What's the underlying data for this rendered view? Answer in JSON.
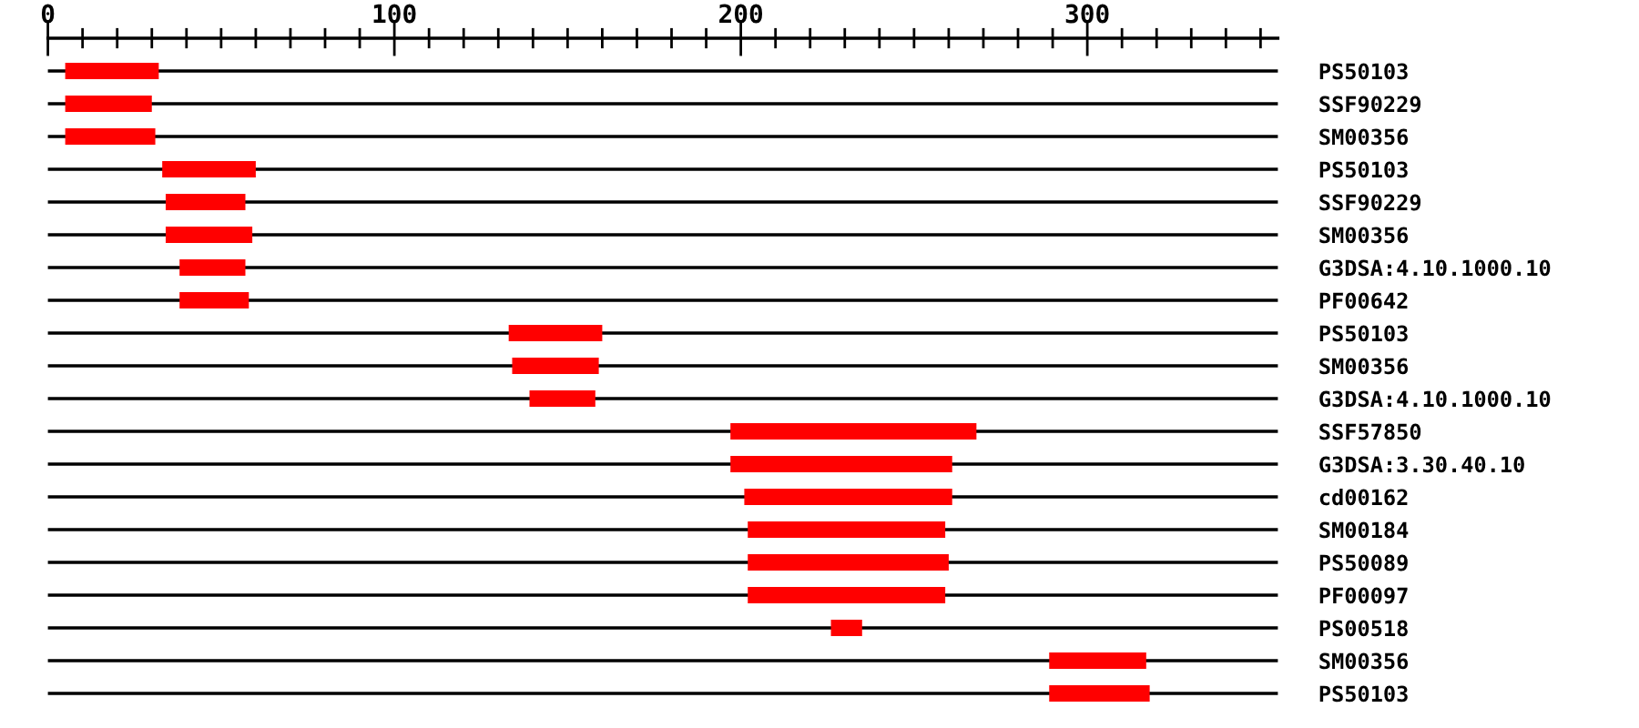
{
  "chart_data": {
    "type": "bar",
    "orientation": "horizontal",
    "categories": [
      "PS50103",
      "SSF90229",
      "SM00356",
      "PS50103",
      "SSF90229",
      "SM00356",
      "G3DSA:4.10.1000.10",
      "PF00642",
      "PS50103",
      "SM00356",
      "G3DSA:4.10.1000.10",
      "SSF57850",
      "G3DSA:3.30.40.10",
      "cd00162",
      "SM00184",
      "PS50089",
      "PF00097",
      "PS00518",
      "SM00356",
      "PS50103"
    ],
    "base": [
      5,
      5,
      5,
      33,
      34,
      34,
      38,
      38,
      133,
      134,
      139,
      197,
      197,
      201,
      202,
      202,
      202,
      226,
      289,
      289
    ],
    "values": [
      27,
      25,
      26,
      27,
      23,
      25,
      19,
      20,
      27,
      25,
      19,
      71,
      64,
      60,
      57,
      58,
      57,
      9,
      28,
      29
    ],
    "color": "#ff0000",
    "xlim": [
      0,
      355
    ],
    "xticks": [
      0,
      {
        "value": 10,
        "label": null
      },
      {
        "value": 20,
        "label": null
      },
      {
        "value": 30,
        "label": null
      },
      {
        "value": 40,
        "label": null
      },
      {
        "value": 50,
        "label": null
      },
      {
        "value": 60,
        "label": null
      },
      {
        "value": 70,
        "label": null
      },
      {
        "value": 80,
        "label": null
      },
      {
        "value": 90,
        "label": null
      },
      100,
      {
        "value": 110,
        "label": null
      },
      {
        "value": 120,
        "label": null
      },
      {
        "value": 130,
        "label": null
      },
      {
        "value": 140,
        "label": null
      },
      {
        "value": 150,
        "label": null
      },
      {
        "value": 160,
        "label": null
      },
      {
        "value": 170,
        "label": null
      },
      {
        "value": 180,
        "label": null
      },
      {
        "value": 190,
        "label": null
      },
      200,
      {
        "value": 210,
        "label": null
      },
      {
        "value": 220,
        "label": null
      },
      {
        "value": 230,
        "label": null
      },
      {
        "value": 240,
        "label": null
      },
      {
        "value": 250,
        "label": null
      },
      {
        "value": 260,
        "label": null
      },
      {
        "value": 270,
        "label": null
      },
      {
        "value": 280,
        "label": null
      },
      {
        "value": 290,
        "label": null
      },
      300,
      {
        "value": 310,
        "label": null
      },
      {
        "value": 320,
        "label": null
      },
      {
        "value": 330,
        "label": null
      },
      {
        "value": 340,
        "label": null
      },
      {
        "value": 350,
        "label": null
      }
    ],
    "grid": "y"
  }
}
